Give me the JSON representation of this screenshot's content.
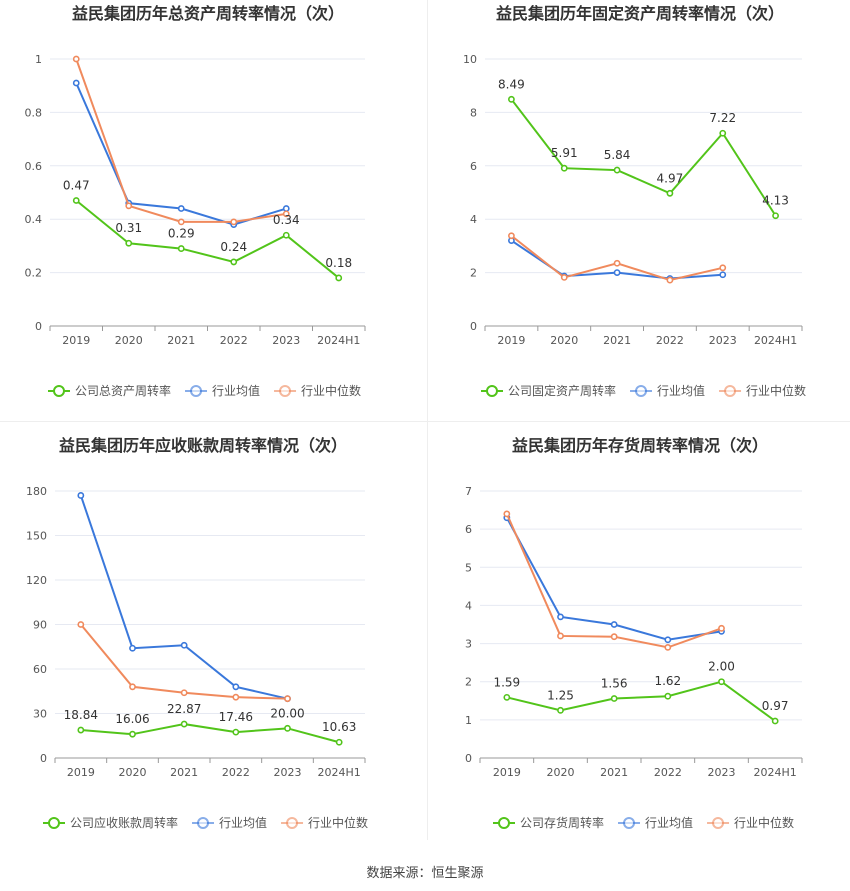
{
  "legend_labels": {
    "avg": "行业均值",
    "median": "行业中位数"
  },
  "colors": {
    "company": "#52c41a",
    "avg": "#3a78db",
    "median": "#f08a5d",
    "grid": "#e6e9f2",
    "text": "#555555",
    "title": "#333333"
  },
  "source": "数据来源：恒生聚源",
  "chart_data": [
    {
      "type": "line",
      "title": "益民集团历年总资产周转率情况（次）",
      "categories": [
        "2019",
        "2020",
        "2021",
        "2022",
        "2023",
        "2024H1"
      ],
      "y_ticks": [
        "0",
        "0.2",
        "0.4",
        "0.6",
        "0.8",
        "1"
      ],
      "ylim": [
        0,
        1
      ],
      "grid": true,
      "legend_position": "bottom",
      "series": [
        {
          "name": "公司总资产周转率",
          "key": "company",
          "values": [
            0.47,
            0.31,
            0.29,
            0.24,
            0.34,
            0.18
          ],
          "labels": [
            "0.47",
            "0.31",
            "0.29",
            "0.24",
            "0.34",
            "0.18"
          ]
        },
        {
          "name": "行业均值",
          "key": "avg",
          "values": [
            0.91,
            0.46,
            0.44,
            0.38,
            0.44,
            null
          ]
        },
        {
          "name": "行业中位数",
          "key": "median",
          "values": [
            1.0,
            0.45,
            0.39,
            0.39,
            0.42,
            null
          ]
        }
      ]
    },
    {
      "type": "line",
      "title": "益民集团历年固定资产周转率情况（次）",
      "categories": [
        "2019",
        "2020",
        "2021",
        "2022",
        "2023",
        "2024H1"
      ],
      "y_ticks": [
        "0",
        "2",
        "4",
        "6",
        "8",
        "10"
      ],
      "ylim": [
        0,
        10
      ],
      "grid": true,
      "legend_position": "bottom",
      "series": [
        {
          "name": "公司固定资产周转率",
          "key": "company",
          "values": [
            8.49,
            5.91,
            5.84,
            4.97,
            7.22,
            4.13
          ],
          "labels": [
            "8.49",
            "5.91",
            "5.84",
            "4.97",
            "7.22",
            "4.13"
          ]
        },
        {
          "name": "行业均值",
          "key": "avg",
          "values": [
            3.2,
            1.87,
            2.0,
            1.78,
            1.92,
            null
          ]
        },
        {
          "name": "行业中位数",
          "key": "median",
          "values": [
            3.38,
            1.82,
            2.35,
            1.72,
            2.18,
            null
          ]
        }
      ]
    },
    {
      "type": "line",
      "title": "益民集团历年应收账款周转率情况（次）",
      "categories": [
        "2019",
        "2020",
        "2021",
        "2022",
        "2023",
        "2024H1"
      ],
      "y_ticks": [
        "0",
        "30",
        "60",
        "90",
        "120",
        "150",
        "180"
      ],
      "ylim": [
        0,
        180
      ],
      "grid": true,
      "legend_position": "bottom",
      "series": [
        {
          "name": "公司应收账款周转率",
          "key": "company",
          "values": [
            18.84,
            16.06,
            22.87,
            17.46,
            20.0,
            10.63
          ],
          "labels": [
            "18.84",
            "16.06",
            "22.87",
            "17.46",
            "20.00",
            "10.63"
          ]
        },
        {
          "name": "行业均值",
          "key": "avg",
          "values": [
            177,
            74,
            76,
            48,
            40,
            null
          ]
        },
        {
          "name": "行业中位数",
          "key": "median",
          "values": [
            90,
            48,
            44,
            41,
            40,
            null
          ]
        }
      ]
    },
    {
      "type": "line",
      "title": "益民集团历年存货周转率情况（次）",
      "categories": [
        "2019",
        "2020",
        "2021",
        "2022",
        "2023",
        "2024H1"
      ],
      "y_ticks": [
        "0",
        "1",
        "2",
        "3",
        "4",
        "5",
        "6",
        "7"
      ],
      "ylim": [
        0,
        7
      ],
      "grid": true,
      "legend_position": "bottom",
      "series": [
        {
          "name": "公司存货周转率",
          "key": "company",
          "values": [
            1.59,
            1.25,
            1.56,
            1.62,
            2.0,
            0.97
          ],
          "labels": [
            "1.59",
            "1.25",
            "1.56",
            "1.62",
            "2.00",
            "0.97"
          ]
        },
        {
          "name": "行业均值",
          "key": "avg",
          "values": [
            6.3,
            3.7,
            3.5,
            3.1,
            3.32,
            null
          ]
        },
        {
          "name": "行业中位数",
          "key": "median",
          "values": [
            6.4,
            3.2,
            3.18,
            2.9,
            3.4,
            null
          ]
        }
      ]
    }
  ]
}
